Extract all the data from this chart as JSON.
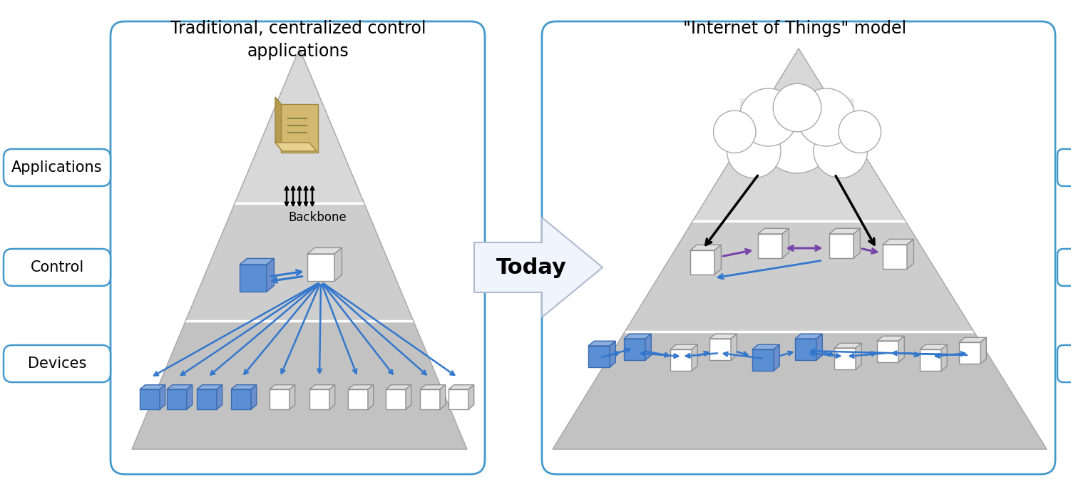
{
  "title_left": "Traditional, centralized control\napplications",
  "title_right": "\"Internet of Things\" model",
  "today_label": "Today",
  "left_labels": [
    "Applications",
    "Control",
    "Devices"
  ],
  "bg_color": "#ffffff",
  "box_border_color": "#4499cc",
  "blue_color": "#3377cc",
  "purple_color": "#7744aa",
  "black_color": "#111111"
}
